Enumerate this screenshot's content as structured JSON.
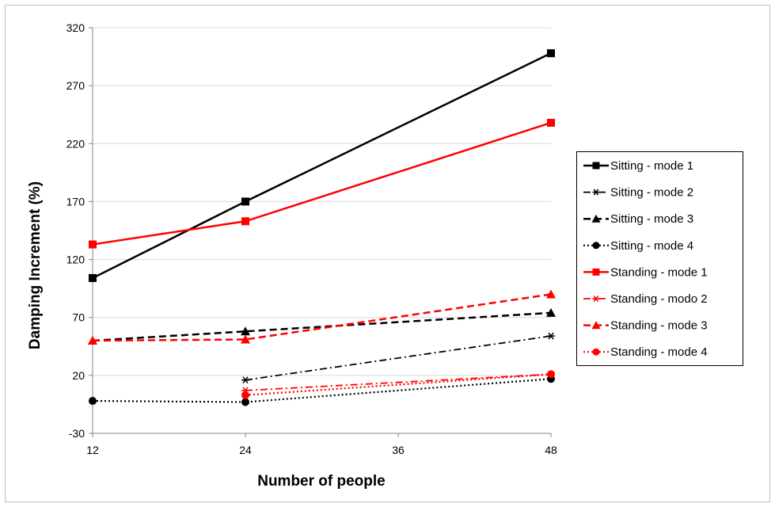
{
  "chart_data": {
    "type": "line",
    "title": "",
    "xlabel": "Number of people",
    "ylabel": "Damping Increment (%)",
    "xticks": [
      12,
      24,
      36,
      48
    ],
    "yticks": [
      -30,
      20,
      70,
      120,
      170,
      220,
      270,
      320
    ],
    "xlim": [
      12,
      48
    ],
    "ylim": [
      -30,
      320
    ],
    "grid": "horizontal",
    "legend_position": "right",
    "series": [
      {
        "name": "Sitting - mode 1",
        "color": "#000000",
        "dash": "solid",
        "marker": "square",
        "points": [
          [
            12,
            104
          ],
          [
            24,
            170
          ],
          [
            48,
            298
          ]
        ]
      },
      {
        "name": "Sitting - mode 2",
        "color": "#000000",
        "dash": "dashdot",
        "marker": "asterisk",
        "points": [
          [
            24,
            16
          ],
          [
            48,
            54
          ]
        ]
      },
      {
        "name": "Sitting - mode 3",
        "color": "#000000",
        "dash": "dash",
        "marker": "triangle",
        "points": [
          [
            12,
            50
          ],
          [
            24,
            58
          ],
          [
            48,
            74
          ]
        ]
      },
      {
        "name": "Sitting - mode 4",
        "color": "#000000",
        "dash": "dot",
        "marker": "circle",
        "points": [
          [
            12,
            -2
          ],
          [
            24,
            -3
          ],
          [
            48,
            17
          ]
        ]
      },
      {
        "name": "Standing - mode 1",
        "color": "#ff0000",
        "dash": "solid",
        "marker": "square",
        "points": [
          [
            12,
            133
          ],
          [
            24,
            153
          ],
          [
            48,
            238
          ]
        ]
      },
      {
        "name": "Standing - modo 2",
        "color": "#ff0000",
        "dash": "dashdot",
        "marker": "asterisk",
        "points": [
          [
            24,
            7
          ],
          [
            48,
            21
          ]
        ]
      },
      {
        "name": "Standing - mode 3",
        "color": "#ff0000",
        "dash": "dash",
        "marker": "triangle",
        "points": [
          [
            12,
            50
          ],
          [
            24,
            51
          ],
          [
            48,
            90
          ]
        ]
      },
      {
        "name": "Standing - mode 4",
        "color": "#ff0000",
        "dash": "dot",
        "marker": "circle",
        "points": [
          [
            24,
            3
          ],
          [
            48,
            21
          ]
        ]
      }
    ]
  }
}
